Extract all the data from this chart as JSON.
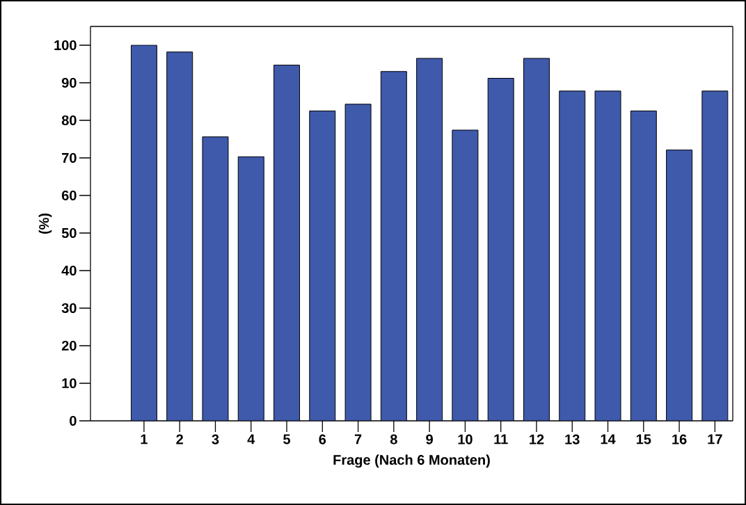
{
  "chart_data": {
    "type": "bar",
    "xlabel": "Frage (Nach 6 Monaten)",
    "ylabel": "(%)",
    "categories": [
      "1",
      "2",
      "3",
      "4",
      "5",
      "6",
      "7",
      "8",
      "9",
      "10",
      "11",
      "12",
      "13",
      "14",
      "15",
      "16",
      "17"
    ],
    "values": [
      100,
      98.2,
      75.6,
      70.3,
      94.7,
      82.5,
      84.3,
      93.0,
      96.5,
      77.4,
      91.2,
      96.5,
      87.8,
      87.8,
      82.5,
      72.1,
      87.8
    ],
    "color": "#3f59ab",
    "ylim": [
      0,
      105
    ],
    "yticks": [
      0,
      10,
      20,
      30,
      40,
      50,
      60,
      70,
      80,
      90,
      100
    ],
    "grid": false
  }
}
